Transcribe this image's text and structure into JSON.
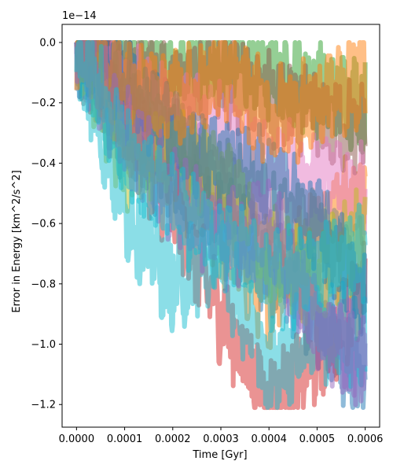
{
  "chart_data": {
    "type": "line",
    "title": "",
    "xlabel": "Time [Gyr]",
    "ylabel": "Error in Energy [km^2/s^2]",
    "y_offset_text": "1e−14",
    "xlim": [
      -3e-05,
      0.00063
    ],
    "ylim": [
      -1.275,
      0.06
    ],
    "y_scale_factor": 1e-14,
    "x_ticks": [
      0.0,
      0.0001,
      0.0002,
      0.0003,
      0.0004,
      0.0005,
      0.0006
    ],
    "x_tick_labels": [
      "0.0000",
      "0.0001",
      "0.0002",
      "0.0003",
      "0.0004",
      "0.0005",
      "0.0006"
    ],
    "y_ticks": [
      0.0,
      -0.2,
      -0.4,
      -0.6,
      -0.8,
      -1.0,
      -1.2
    ],
    "y_tick_labels": [
      "0.0",
      "−0.2",
      "−0.4",
      "−0.6",
      "−0.8",
      "−1.0",
      "−1.2"
    ],
    "grid": false,
    "legend": "none",
    "alpha": 0.5,
    "series": [
      {
        "color": "#1f77b4",
        "x": [
          0.0,
          0.0001,
          0.0002,
          0.0003,
          0.0004,
          0.0005,
          0.0006
        ],
        "values": [
          0.0,
          -0.3,
          -0.45,
          -0.6,
          -0.75,
          -0.9,
          -1.15
        ]
      },
      {
        "color": "#ff7f0e",
        "x": [
          0.0,
          0.0001,
          0.0002,
          0.0003,
          0.0004,
          0.0005,
          0.0006
        ],
        "values": [
          0.0,
          -0.25,
          -0.4,
          -0.65,
          -0.85,
          -0.6,
          -0.5
        ]
      },
      {
        "color": "#2ca02c",
        "x": [
          0.0,
          0.0001,
          0.0002,
          0.0003,
          0.0004,
          0.0005,
          0.0006
        ],
        "values": [
          0.0,
          -0.05,
          -0.1,
          -0.05,
          -0.1,
          -0.15,
          -0.2
        ]
      },
      {
        "color": "#d62728",
        "x": [
          0.0,
          0.0001,
          0.0002,
          0.0003,
          0.0004,
          0.0005,
          0.0006
        ],
        "values": [
          0.0,
          -0.25,
          -0.55,
          -0.9,
          -1.2,
          -1.05,
          -0.8
        ]
      },
      {
        "color": "#9467bd",
        "x": [
          0.0,
          0.0001,
          0.0002,
          0.0003,
          0.0004,
          0.0005,
          0.0006
        ],
        "values": [
          0.0,
          -0.2,
          -0.3,
          -0.5,
          -0.7,
          -0.85,
          -1.1
        ]
      },
      {
        "color": "#8c564b",
        "x": [
          0.0,
          0.0001,
          0.0002,
          0.0003,
          0.0004,
          0.0005,
          0.0006
        ],
        "values": [
          0.0,
          -0.1,
          -0.15,
          -0.1,
          -0.2,
          -0.25,
          -0.3
        ]
      },
      {
        "color": "#e377c2",
        "x": [
          0.0,
          0.0001,
          0.0002,
          0.0003,
          0.0004,
          0.0005,
          0.0006
        ],
        "values": [
          0.0,
          -0.15,
          -0.25,
          -0.3,
          -0.4,
          -0.45,
          -0.5
        ]
      },
      {
        "color": "#7f7f7f",
        "x": [
          0.0,
          0.0001,
          0.0002,
          0.0003,
          0.0004,
          0.0005,
          0.0006
        ],
        "values": [
          0.0,
          -0.2,
          -0.35,
          -0.45,
          -0.55,
          -0.65,
          -0.75
        ]
      },
      {
        "color": "#bcbd22",
        "x": [
          0.0,
          0.0001,
          0.0002,
          0.0003,
          0.0004,
          0.0005,
          0.0006
        ],
        "values": [
          0.0,
          -0.4,
          -0.35,
          -0.45,
          -0.7,
          -0.8,
          -0.6
        ]
      },
      {
        "color": "#17becf",
        "x": [
          0.0,
          0.0001,
          0.0002,
          0.0003,
          0.0004,
          0.0005,
          0.0006
        ],
        "values": [
          0.0,
          -0.55,
          -0.8,
          -0.7,
          -1.1,
          -0.95,
          -1.0
        ]
      },
      {
        "color": "#1f77b4",
        "x": [
          0.0,
          0.0001,
          0.0002,
          0.0003,
          0.0004,
          0.0005,
          0.0006
        ],
        "values": [
          0.0,
          -0.1,
          -0.3,
          -0.4,
          -0.45,
          -0.6,
          -0.85
        ]
      },
      {
        "color": "#ff7f0e",
        "x": [
          0.0,
          0.0001,
          0.0002,
          0.0003,
          0.0004,
          0.0005,
          0.0006
        ],
        "values": [
          0.0,
          -0.15,
          -0.2,
          -0.1,
          -0.25,
          -0.2,
          -0.1
        ]
      },
      {
        "color": "#9467bd",
        "x": [
          0.0,
          0.0001,
          0.0002,
          0.0003,
          0.0004,
          0.0005,
          0.0006
        ],
        "values": [
          0.0,
          -0.3,
          -0.5,
          -0.65,
          -0.6,
          -0.95,
          -1.05
        ]
      },
      {
        "color": "#17becf",
        "x": [
          0.0,
          0.0001,
          0.0002,
          0.0003,
          0.0004,
          0.0005,
          0.0006
        ],
        "values": [
          0.0,
          -0.35,
          -0.55,
          -0.65,
          -0.8,
          -0.75,
          -0.7
        ]
      }
    ]
  }
}
